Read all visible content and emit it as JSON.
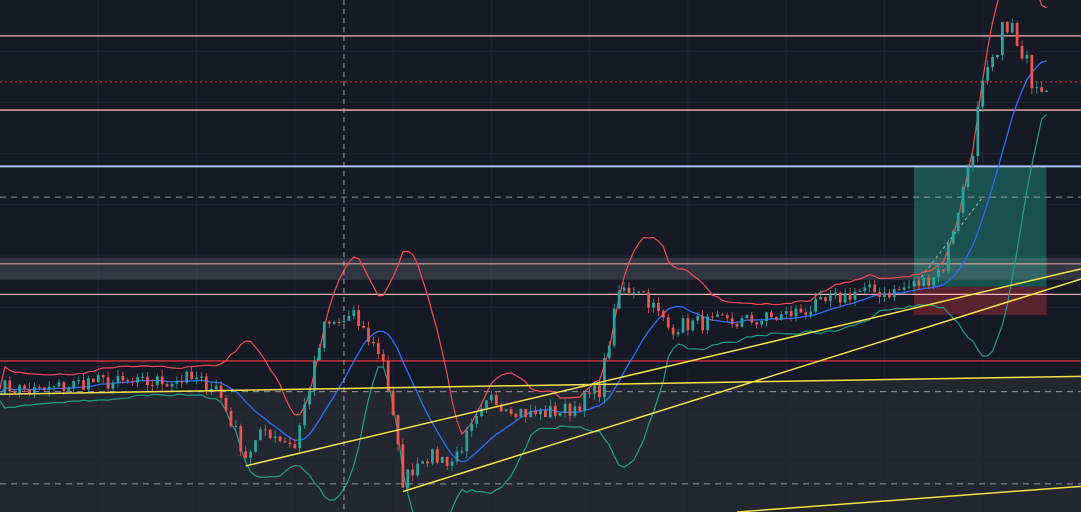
{
  "colors": {
    "background": "#161a25",
    "lower_zone": "#262a32",
    "gridline": "#1f2431",
    "candle_up": "#26a69a",
    "candle_down": "#ef5350",
    "bb_upper": "#ef4a55",
    "bb_basis": "#2f6bf0",
    "bb_lower": "#1f9c82",
    "trendline": "#f2e24a",
    "pink_level": "#f5b3b3",
    "red_level": "#d8323a",
    "blue_level": "#aec4ff",
    "crosshair": "#d0d3dc",
    "dashed_level": "#cfd2da",
    "long_target_zone": "#1b6b5f",
    "long_stop_zone": "#6a2630",
    "grey_zone": "#9aa0ac"
  },
  "chart_data": {
    "type": "candlestick",
    "title": "",
    "xlabel": "",
    "ylabel": "",
    "x_range": [
      0,
      220
    ],
    "y_range": [
      0,
      100
    ],
    "grid": true,
    "crosshair_x": 70,
    "indicators": [
      "bollinger_bands"
    ],
    "price_path": [
      [
        0,
        24.5
      ],
      [
        8,
        23.5
      ],
      [
        18,
        25.5
      ],
      [
        28,
        25
      ],
      [
        38,
        26
      ],
      [
        44,
        24.5
      ],
      [
        50,
        11
      ],
      [
        54,
        16
      ],
      [
        60,
        13
      ],
      [
        66,
        36
      ],
      [
        72,
        38
      ],
      [
        78,
        30
      ],
      [
        82,
        6
      ],
      [
        86,
        11
      ],
      [
        92,
        10
      ],
      [
        100,
        22
      ],
      [
        108,
        19
      ],
      [
        116,
        20
      ],
      [
        122,
        24
      ],
      [
        126,
        43
      ],
      [
        130,
        44
      ],
      [
        136,
        36
      ],
      [
        142,
        37
      ],
      [
        150,
        37
      ],
      [
        158,
        38
      ],
      [
        166,
        40
      ],
      [
        174,
        43
      ],
      [
        182,
        43
      ],
      [
        188,
        45
      ],
      [
        192,
        48
      ],
      [
        196,
        63
      ],
      [
        200,
        82
      ],
      [
        203,
        88
      ],
      [
        205,
        97
      ],
      [
        208,
        87
      ],
      [
        212,
        85
      ]
    ],
    "horizontal_levels": [
      {
        "kind": "pink",
        "y": 93
      },
      {
        "kind": "pink-dotted",
        "y": 84
      },
      {
        "kind": "pink",
        "y": 78.5
      },
      {
        "kind": "blue",
        "y": 67.5
      },
      {
        "kind": "dashed",
        "y": 61.5
      },
      {
        "kind": "grey-band",
        "y": 47.5
      },
      {
        "kind": "pink",
        "y": 42.5
      },
      {
        "kind": "red",
        "y": 29.5
      },
      {
        "kind": "dashed",
        "y": 23.5
      },
      {
        "kind": "dashed",
        "y": 5.5
      }
    ],
    "trendlines": [
      {
        "from": [
          50,
          9
        ],
        "to": [
          220,
          47.5
        ]
      },
      {
        "from": [
          82,
          4
        ],
        "to": [
          220,
          45.5
        ]
      },
      {
        "from": [
          0,
          23
        ],
        "to": [
          220,
          26.5
        ]
      },
      {
        "from": [
          150,
          0
        ],
        "to": [
          220,
          5
        ]
      }
    ],
    "position": {
      "type": "long",
      "x_start": 186,
      "x_end": 213,
      "entry": 44,
      "target": 67.5,
      "stop": 38.5
    }
  }
}
